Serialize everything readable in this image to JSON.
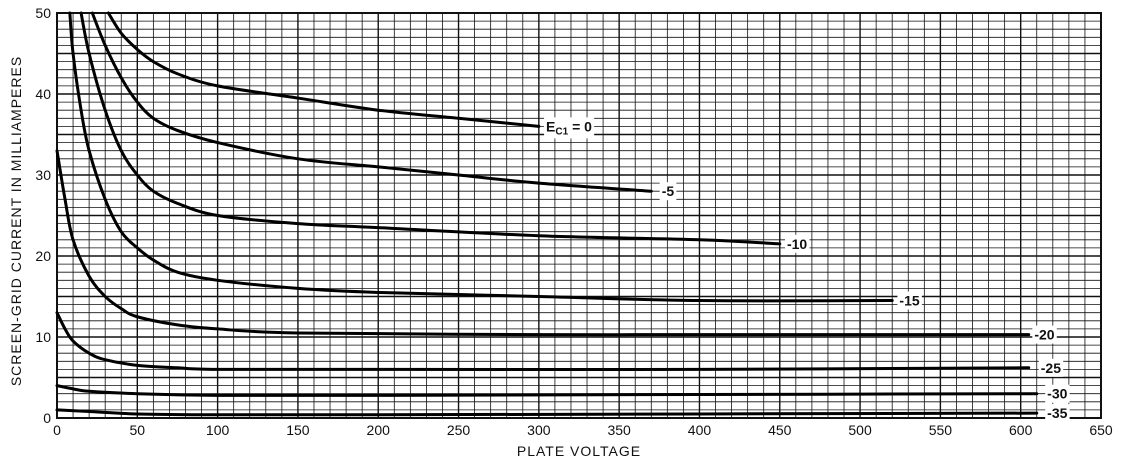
{
  "chart_data": {
    "type": "line",
    "title": "",
    "xlabel": "PLATE VOLTAGE",
    "ylabel": "SCREEN-GRID CURRENT IN MILLIAMPERES",
    "xlim": [
      0,
      650
    ],
    "ylim": [
      0,
      50
    ],
    "x_ticks": [
      0,
      50,
      100,
      150,
      200,
      250,
      300,
      350,
      400,
      450,
      500,
      550,
      600,
      650
    ],
    "y_ticks": [
      0,
      10,
      20,
      30,
      40,
      50
    ],
    "grid": true,
    "series": [
      {
        "name": "E",
        "label_sub": "C1",
        "label_tail": " = 0",
        "label_at": [
          302,
          36
        ],
        "points": [
          [
            32,
            50
          ],
          [
            40,
            47.5
          ],
          [
            50,
            45.5
          ],
          [
            60,
            44
          ],
          [
            75,
            42.5
          ],
          [
            100,
            41
          ],
          [
            150,
            39.5
          ],
          [
            200,
            38
          ],
          [
            250,
            37
          ],
          [
            300,
            36
          ]
        ]
      },
      {
        "name": "-5",
        "label_at": [
          374,
          28
        ],
        "points": [
          [
            22,
            50
          ],
          [
            30,
            46
          ],
          [
            40,
            42
          ],
          [
            50,
            39
          ],
          [
            60,
            37
          ],
          [
            75,
            35.5
          ],
          [
            100,
            34
          ],
          [
            150,
            32
          ],
          [
            200,
            31
          ],
          [
            250,
            30
          ],
          [
            300,
            29
          ],
          [
            370,
            28
          ]
        ]
      },
      {
        "name": "-10",
        "label_at": [
          452,
          21.5
        ],
        "points": [
          [
            15,
            50
          ],
          [
            20,
            45
          ],
          [
            30,
            38
          ],
          [
            40,
            33
          ],
          [
            50,
            30
          ],
          [
            60,
            28
          ],
          [
            75,
            26.5
          ],
          [
            100,
            25
          ],
          [
            150,
            24
          ],
          [
            200,
            23.5
          ],
          [
            300,
            22.5
          ],
          [
            400,
            22
          ],
          [
            450,
            21.5
          ]
        ]
      },
      {
        "name": "-15",
        "label_at": [
          522,
          14.5
        ],
        "points": [
          [
            8,
            50
          ],
          [
            10,
            45
          ],
          [
            15,
            38
          ],
          [
            20,
            33
          ],
          [
            30,
            27
          ],
          [
            40,
            23
          ],
          [
            50,
            21
          ],
          [
            60,
            19.5
          ],
          [
            75,
            18
          ],
          [
            100,
            17
          ],
          [
            150,
            16
          ],
          [
            200,
            15.5
          ],
          [
            300,
            15
          ],
          [
            400,
            14.5
          ],
          [
            520,
            14.5
          ]
        ]
      },
      {
        "name": "-20",
        "label_at": [
          606,
          10.3
        ],
        "points": [
          [
            0,
            33
          ],
          [
            5,
            27
          ],
          [
            10,
            22
          ],
          [
            20,
            17.5
          ],
          [
            30,
            15
          ],
          [
            40,
            13.5
          ],
          [
            50,
            12.5
          ],
          [
            75,
            11.5
          ],
          [
            100,
            11
          ],
          [
            150,
            10.5
          ],
          [
            300,
            10.3
          ],
          [
            450,
            10.3
          ],
          [
            605,
            10.3
          ]
        ]
      },
      {
        "name": "-25",
        "label_at": [
          610,
          6.2
        ],
        "points": [
          [
            0,
            13
          ],
          [
            5,
            11
          ],
          [
            10,
            9.5
          ],
          [
            20,
            8
          ],
          [
            30,
            7.2
          ],
          [
            50,
            6.5
          ],
          [
            75,
            6.2
          ],
          [
            100,
            6
          ],
          [
            200,
            6
          ],
          [
            400,
            6
          ],
          [
            605,
            6.2
          ]
        ]
      },
      {
        "name": "-30",
        "label_at": [
          614,
          3
        ],
        "points": [
          [
            0,
            4
          ],
          [
            10,
            3.6
          ],
          [
            20,
            3.3
          ],
          [
            50,
            3
          ],
          [
            100,
            2.8
          ],
          [
            200,
            2.8
          ],
          [
            400,
            2.9
          ],
          [
            610,
            3
          ]
        ]
      },
      {
        "name": "-35",
        "label_at": [
          614,
          0.6
        ],
        "points": [
          [
            0,
            1
          ],
          [
            20,
            0.8
          ],
          [
            50,
            0.5
          ],
          [
            100,
            0.4
          ],
          [
            200,
            0.4
          ],
          [
            400,
            0.5
          ],
          [
            610,
            0.6
          ]
        ]
      }
    ]
  }
}
